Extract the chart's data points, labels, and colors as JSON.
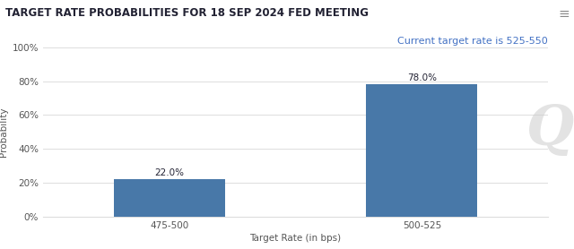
{
  "title": "TARGET RATE PROBABILITIES FOR 18 SEP 2024 FED MEETING",
  "subtitle": "Current target rate is 525-550",
  "categories": [
    "475-500",
    "500-525"
  ],
  "values": [
    22.0,
    78.0
  ],
  "bar_color": "#4878a8",
  "xlabel": "Target Rate (in bps)",
  "ylabel": "Probability",
  "ylim": [
    0,
    100
  ],
  "yticks": [
    0,
    20,
    40,
    60,
    80,
    100
  ],
  "ytick_labels": [
    "0%",
    "20%",
    "40%",
    "60%",
    "80%",
    "100%"
  ],
  "background_color": "#ffffff",
  "title_fontsize": 8.5,
  "subtitle_fontsize": 8.0,
  "label_fontsize": 7.5,
  "tick_fontsize": 7.5,
  "bar_label_fontsize": 7.5,
  "title_color": "#222233",
  "subtitle_color": "#4472c4",
  "axis_label_color": "#555555",
  "tick_color": "#555555",
  "grid_color": "#dddddd",
  "watermark_text": "Q",
  "watermark_color": "#cccccc",
  "bar_width": 0.22,
  "x_positions": [
    0.25,
    0.75
  ]
}
